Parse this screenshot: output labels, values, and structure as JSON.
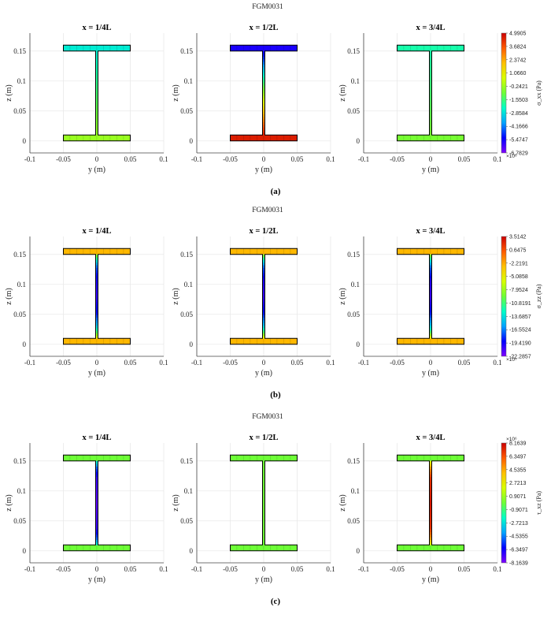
{
  "figure": {
    "colors": {
      "jet": [
        "#7f00ff",
        "#0000ff",
        "#00a2ff",
        "#00ffc8",
        "#6dff36",
        "#d8ff00",
        "#ffc000",
        "#ff5a00",
        "#cc0000"
      ],
      "outline": "#000000",
      "grid": "#e6e6e6",
      "axis": "#444444"
    }
  },
  "chart_data": [
    {
      "type": "heatmap",
      "figure_label": "(a)",
      "suptitle": "FGM0031",
      "panel_titles": [
        "x = 1/4L",
        "x = 1/2L",
        "x = 3/4L"
      ],
      "xlabel": "y (m)",
      "ylabel": "z (m)",
      "xlim": [
        -0.1,
        0.1
      ],
      "ylim": [
        -0.02,
        0.18
      ],
      "x_ticks": [
        "-0.1",
        "-0.05",
        "0",
        "0.05",
        "0.1"
      ],
      "y_ticks": [
        "0",
        "0.05",
        "0.1",
        "0.15"
      ],
      "colorbar": {
        "label": "σ_xx (Pa)",
        "min": -6.7829,
        "max": 4.9905,
        "ticks": [
          "4.9905",
          "3.6824",
          "2.3742",
          "1.0660",
          "-0.2421",
          "-1.5503",
          "-2.8584",
          "-4.1666",
          "-5.4747",
          "-6.7829"
        ],
        "exponent_label": "×10⁶"
      },
      "section_geometry": {
        "flange_width": 0.1,
        "flange_thickness": 0.01,
        "total_height": 0.16
      },
      "panels": [
        {
          "top_flange": 0.35,
          "bottom_flange": 0.55,
          "web": [
            [
              0.0,
              0.55
            ],
            [
              1.0,
              0.35
            ]
          ]
        },
        {
          "top_flange": 0.1,
          "bottom_flange": 0.96,
          "web": [
            [
              0.0,
              0.96
            ],
            [
              0.08,
              0.9
            ],
            [
              0.3,
              0.72
            ],
            [
              0.5,
              0.55
            ],
            [
              0.7,
              0.38
            ],
            [
              0.9,
              0.18
            ],
            [
              1.0,
              0.1
            ]
          ]
        },
        {
          "top_flange": 0.4,
          "bottom_flange": 0.51,
          "web": [
            [
              0.0,
              0.51
            ],
            [
              1.0,
              0.4
            ]
          ]
        }
      ]
    },
    {
      "type": "heatmap",
      "figure_label": "(b)",
      "suptitle": "FGM0031",
      "panel_titles": [
        "x = 1/4L",
        "x = 1/2L",
        "x = 3/4L"
      ],
      "xlabel": "y (m)",
      "ylabel": "z (m)",
      "xlim": [
        -0.1,
        0.1
      ],
      "ylim": [
        -0.02,
        0.18
      ],
      "x_ticks": [
        "-0.1",
        "-0.05",
        "0",
        "0.05",
        "0.1"
      ],
      "y_ticks": [
        "0",
        "0.05",
        "0.1",
        "0.15"
      ],
      "colorbar": {
        "label": "σ_zz (Pa)",
        "min": -22.2857,
        "max": 3.5142,
        "ticks": [
          "3.5142",
          "0.6475",
          "-2.2191",
          "-5.0858",
          "-7.9524",
          "-10.8191",
          "-13.6857",
          "-16.5524",
          "-19.4190",
          "-22.2857"
        ],
        "exponent_label": "×10⁵"
      },
      "section_geometry": {
        "flange_width": 0.1,
        "flange_thickness": 0.01,
        "total_height": 0.16
      },
      "panels": [
        {
          "top_flange": 0.76,
          "bottom_flange": 0.76,
          "web": [
            [
              0.0,
              0.7
            ],
            [
              0.06,
              0.5
            ],
            [
              0.15,
              0.3
            ],
            [
              0.3,
              0.14
            ],
            [
              0.5,
              0.07
            ],
            [
              0.7,
              0.1
            ],
            [
              0.85,
              0.2
            ],
            [
              0.93,
              0.35
            ],
            [
              1.0,
              0.55
            ]
          ]
        },
        {
          "top_flange": 0.76,
          "bottom_flange": 0.76,
          "web": [
            [
              0.0,
              0.7
            ],
            [
              0.06,
              0.5
            ],
            [
              0.15,
              0.3
            ],
            [
              0.3,
              0.14
            ],
            [
              0.5,
              0.07
            ],
            [
              0.7,
              0.1
            ],
            [
              0.85,
              0.2
            ],
            [
              0.93,
              0.35
            ],
            [
              1.0,
              0.55
            ]
          ]
        },
        {
          "top_flange": 0.76,
          "bottom_flange": 0.76,
          "web": [
            [
              0.0,
              0.7
            ],
            [
              0.06,
              0.5
            ],
            [
              0.15,
              0.3
            ],
            [
              0.3,
              0.14
            ],
            [
              0.5,
              0.07
            ],
            [
              0.7,
              0.1
            ],
            [
              0.85,
              0.2
            ],
            [
              0.93,
              0.35
            ],
            [
              1.0,
              0.55
            ]
          ]
        }
      ]
    },
    {
      "type": "heatmap",
      "figure_label": "(c)",
      "suptitle": "FGM0031",
      "panel_titles": [
        "x = 1/4L",
        "x = 1/2L",
        "x = 3/4L"
      ],
      "xlabel": "y (m)",
      "ylabel": "z (m)",
      "xlim": [
        -0.1,
        0.1
      ],
      "ylim": [
        -0.02,
        0.18
      ],
      "x_ticks": [
        "-0.1",
        "-0.05",
        "0",
        "0.05",
        "0.1"
      ],
      "y_ticks": [
        "0",
        "0.05",
        "0.1",
        "0.15"
      ],
      "colorbar": {
        "label": "τ_xz (Pa)",
        "min": -8.1639,
        "max": 8.1639,
        "ticks": [
          "8.1639",
          "6.3497",
          "4.5355",
          "2.7213",
          "0.9071",
          "-0.9071",
          "-2.7213",
          "-4.5355",
          "-6.3497",
          "-8.1639"
        ],
        "exponent_label": "×10⁶"
      },
      "section_geometry": {
        "flange_width": 0.1,
        "flange_thickness": 0.01,
        "total_height": 0.16
      },
      "panels": [
        {
          "top_flange": 0.5,
          "bottom_flange": 0.5,
          "web": [
            [
              0.0,
              0.38
            ],
            [
              0.08,
              0.2
            ],
            [
              0.2,
              0.07
            ],
            [
              0.5,
              0.03
            ],
            [
              0.8,
              0.07
            ],
            [
              0.92,
              0.2
            ],
            [
              1.0,
              0.38
            ]
          ]
        },
        {
          "top_flange": 0.5,
          "bottom_flange": 0.5,
          "web": [
            [
              0.0,
              0.5
            ],
            [
              1.0,
              0.5
            ]
          ]
        },
        {
          "top_flange": 0.5,
          "bottom_flange": 0.5,
          "web": [
            [
              0.0,
              0.62
            ],
            [
              0.08,
              0.8
            ],
            [
              0.2,
              0.93
            ],
            [
              0.5,
              0.97
            ],
            [
              0.8,
              0.93
            ],
            [
              0.92,
              0.8
            ],
            [
              1.0,
              0.62
            ]
          ]
        }
      ]
    }
  ]
}
